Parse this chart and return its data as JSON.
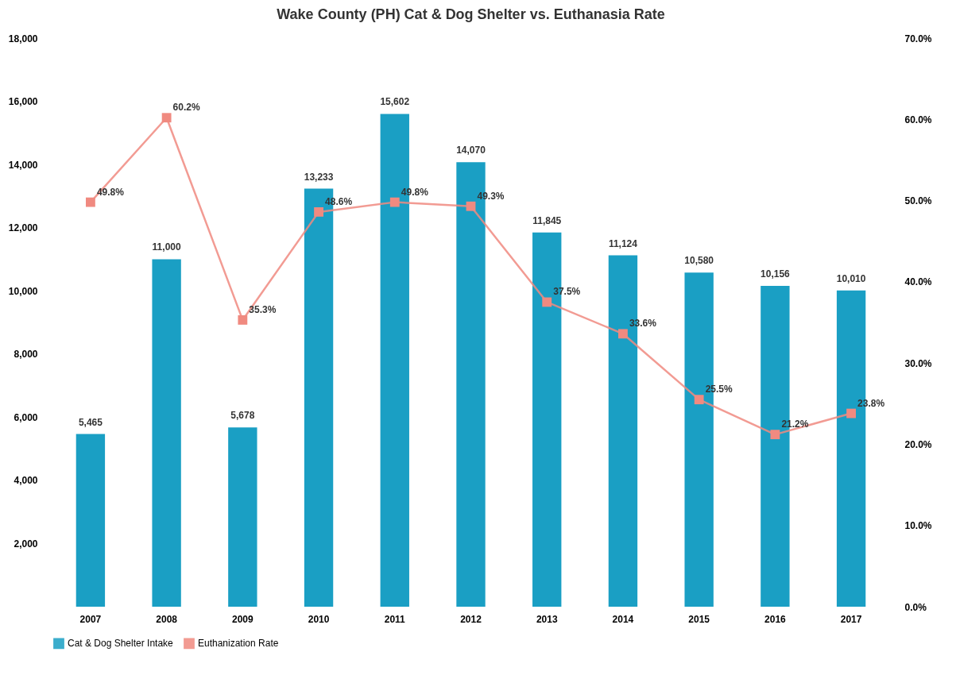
{
  "chart_data": {
    "type": "bar",
    "title": "Wake County (PH) Cat & Dog Shelter vs. Euthanasia Rate",
    "categories": [
      "2007",
      "2008",
      "2009",
      "2010",
      "2011",
      "2012",
      "2013",
      "2014",
      "2015",
      "2016",
      "2017"
    ],
    "series": [
      {
        "name": "Cat & Dog Shelter Intake",
        "color": "#1a9fc4",
        "values": [
          5465,
          11000,
          5678,
          13233,
          15602,
          14070,
          11845,
          11124,
          10580,
          10156,
          10010
        ],
        "value_labels": [
          "5,465",
          "11,000",
          "5,678",
          "13,233",
          "15,602",
          "14,070",
          "11,845",
          "11,124",
          "10,580",
          "10,156",
          "10,010"
        ]
      },
      {
        "name": "Euthanization Rate",
        "type": "line",
        "axis": "y2",
        "color": "#f08a80",
        "values": [
          49.8,
          60.2,
          35.3,
          48.6,
          49.8,
          49.3,
          37.5,
          33.6,
          25.5,
          21.2,
          23.8
        ],
        "value_labels": [
          "49.8%",
          "60.2%",
          "35.3%",
          "48.6%",
          "49.8%",
          "49.3%",
          "37.5%",
          "33.6%",
          "25.5%",
          "21.2%",
          "23.8%"
        ]
      }
    ],
    "ylim": [
      0,
      18000
    ],
    "yticks": [
      {
        "value": 2000,
        "label": "2,000"
      },
      {
        "value": 4000,
        "label": "4,000"
      },
      {
        "value": 6000,
        "label": "6,000"
      },
      {
        "value": 8000,
        "label": "8,000"
      },
      {
        "value": 10000,
        "label": "10,000"
      },
      {
        "value": 12000,
        "label": "12,000"
      },
      {
        "value": 14000,
        "label": "14,000"
      },
      {
        "value": 16000,
        "label": "16,000"
      },
      {
        "value": 18000,
        "label": "18,000"
      }
    ],
    "y2lim": [
      0,
      70
    ],
    "y2ticks": [
      {
        "value": 0,
        "label": "0.0%"
      },
      {
        "value": 10,
        "label": "10.0%"
      },
      {
        "value": 20,
        "label": "20.0%"
      },
      {
        "value": 30,
        "label": "30.0%"
      },
      {
        "value": 40,
        "label": "40.0%"
      },
      {
        "value": 50,
        "label": "50.0%"
      },
      {
        "value": 60,
        "label": "60.0%"
      },
      {
        "value": 70,
        "label": "70.0%"
      }
    ],
    "marker": "square",
    "line_style": "solid",
    "legend": "bottom"
  }
}
